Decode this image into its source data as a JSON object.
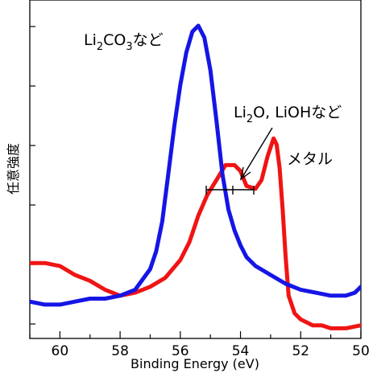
{
  "chart_data": {
    "type": "line",
    "xlabel": "Binding Energy (eV)",
    "ylabel": "任意強度",
    "xlim": [
      61,
      50
    ],
    "ylim": [
      0,
      1
    ],
    "x_reversed": true,
    "x_ticks": [
      60,
      58,
      56,
      54,
      52,
      50
    ],
    "grid": false,
    "series": [
      {
        "color": "#1515e6",
        "x": [
          61.0,
          60.5,
          60.0,
          59.5,
          59.0,
          58.5,
          58.0,
          57.5,
          57.0,
          56.8,
          56.6,
          56.4,
          56.2,
          56.0,
          55.8,
          55.6,
          55.4,
          55.2,
          55.0,
          54.8,
          54.6,
          54.4,
          54.2,
          54.0,
          53.8,
          53.5,
          53.0,
          52.5,
          52.0,
          51.5,
          51.0,
          50.5,
          50.2,
          50.0
        ],
        "y": [
          0.07,
          0.06,
          0.06,
          0.07,
          0.08,
          0.08,
          0.09,
          0.11,
          0.18,
          0.24,
          0.34,
          0.5,
          0.66,
          0.8,
          0.91,
          0.98,
          1.0,
          0.96,
          0.85,
          0.68,
          0.5,
          0.38,
          0.31,
          0.26,
          0.22,
          0.19,
          0.16,
          0.13,
          0.11,
          0.1,
          0.09,
          0.09,
          0.1,
          0.12
        ]
      },
      {
        "color": "#f01414",
        "x": [
          61.0,
          60.5,
          60.0,
          59.5,
          59.0,
          58.5,
          58.0,
          57.5,
          57.0,
          56.5,
          56.0,
          55.7,
          55.4,
          55.1,
          54.8,
          54.5,
          54.2,
          54.0,
          53.8,
          53.5,
          53.3,
          53.1,
          52.9,
          52.8,
          52.7,
          52.6,
          52.5,
          52.4,
          52.2,
          52.0,
          51.8,
          51.6,
          51.3,
          51.0,
          50.5,
          50.0
        ],
        "y": [
          0.2,
          0.2,
          0.19,
          0.16,
          0.14,
          0.11,
          0.09,
          0.1,
          0.12,
          0.15,
          0.21,
          0.27,
          0.36,
          0.43,
          0.48,
          0.53,
          0.53,
          0.51,
          0.46,
          0.45,
          0.48,
          0.56,
          0.62,
          0.6,
          0.52,
          0.38,
          0.22,
          0.09,
          0.03,
          0.01,
          0.0,
          -0.01,
          -0.01,
          -0.02,
          -0.02,
          -0.01
        ]
      }
    ],
    "annotations": {
      "blue_peak": {
        "base": "Li",
        "sub1": "2",
        "mid": "CO",
        "sub2": "3",
        "tail": "など"
      },
      "middle": {
        "base": "Li",
        "sub1": "2",
        "tail": "O, LiOHなど"
      },
      "red_peak": {
        "text": "メタル"
      }
    }
  }
}
